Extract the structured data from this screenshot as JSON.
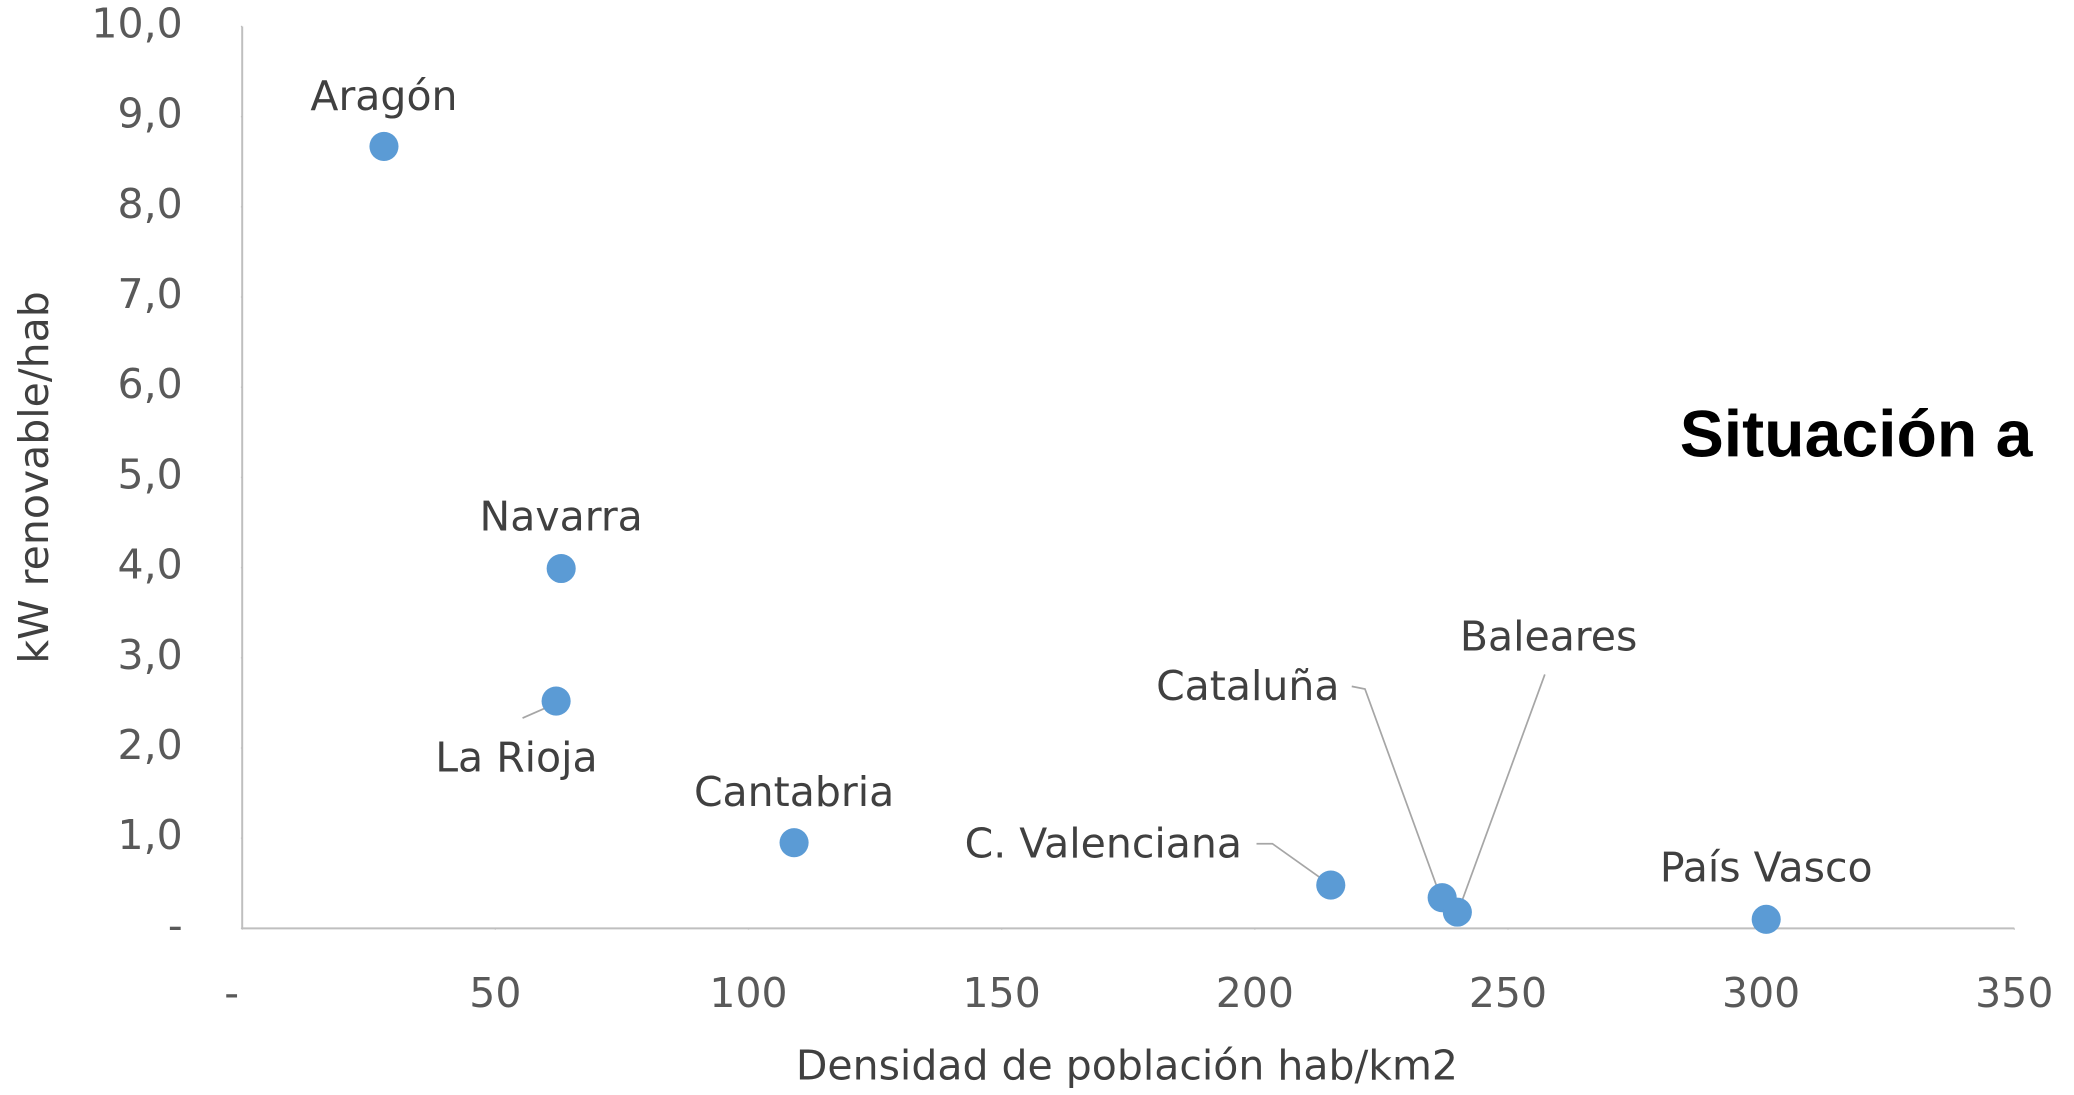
{
  "chart_data": {
    "type": "scatter",
    "title": "Situación a",
    "xlabel": "Densidad de población hab/km2",
    "ylabel": "kW renovable/hab",
    "labels": [
      "Aragón",
      "Navarra",
      "La Rioja",
      "Cantabria",
      "C. Valenciana",
      "Cataluña",
      "Baleares",
      "País Vasco"
    ],
    "x": [
      28,
      63,
      62,
      109,
      215,
      237,
      240,
      301
    ],
    "values": [
      8.67,
      3.99,
      2.52,
      0.95,
      0.48,
      0.34,
      0.18,
      0.1
    ],
    "color": "#5b9bd5",
    "xlim": [
      0,
      350
    ],
    "xticks": [
      {
        "value": 0,
        "label": "-"
      },
      50,
      100,
      150,
      200,
      250,
      300,
      350
    ],
    "ylim": [
      0,
      10
    ],
    "yticks": [
      {
        "value": 0,
        "label": "-"
      },
      {
        "value": 1,
        "label": "1,0"
      },
      {
        "value": 2,
        "label": "2,0"
      },
      {
        "value": 3,
        "label": "3,0"
      },
      {
        "value": 4,
        "label": "4,0"
      },
      {
        "value": 5,
        "label": "5,0"
      },
      {
        "value": 6,
        "label": "6,0"
      },
      {
        "value": 7,
        "label": "7,0"
      },
      {
        "value": 8,
        "label": "8,0"
      },
      {
        "value": 9,
        "label": "9,0"
      },
      {
        "value": 10,
        "label": "10,0"
      }
    ]
  }
}
